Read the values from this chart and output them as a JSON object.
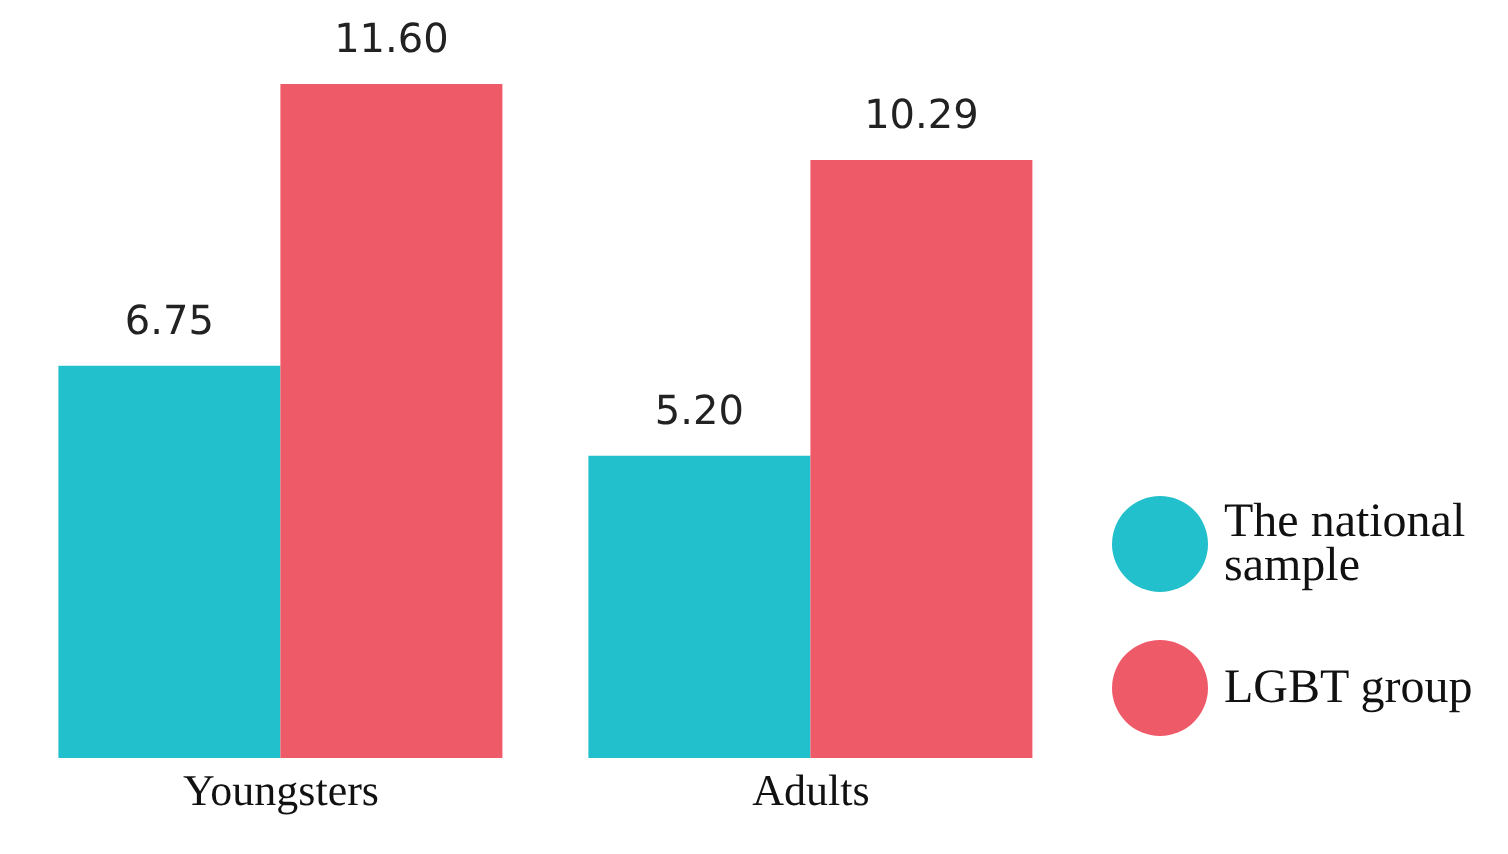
{
  "chart_data": {
    "type": "bar",
    "categories": [
      "Youngsters",
      "Adults"
    ],
    "series": [
      {
        "name": "The national sample",
        "color": "#22bfcc",
        "values": [
          6.75,
          5.2
        ],
        "value_labels": [
          "6.75",
          "5.20"
        ]
      },
      {
        "name": "LGBT group",
        "color": "#ef5a68",
        "values": [
          11.6,
          10.29
        ],
        "value_labels": [
          "11.60",
          "10.29"
        ]
      }
    ],
    "legend": "right"
  }
}
